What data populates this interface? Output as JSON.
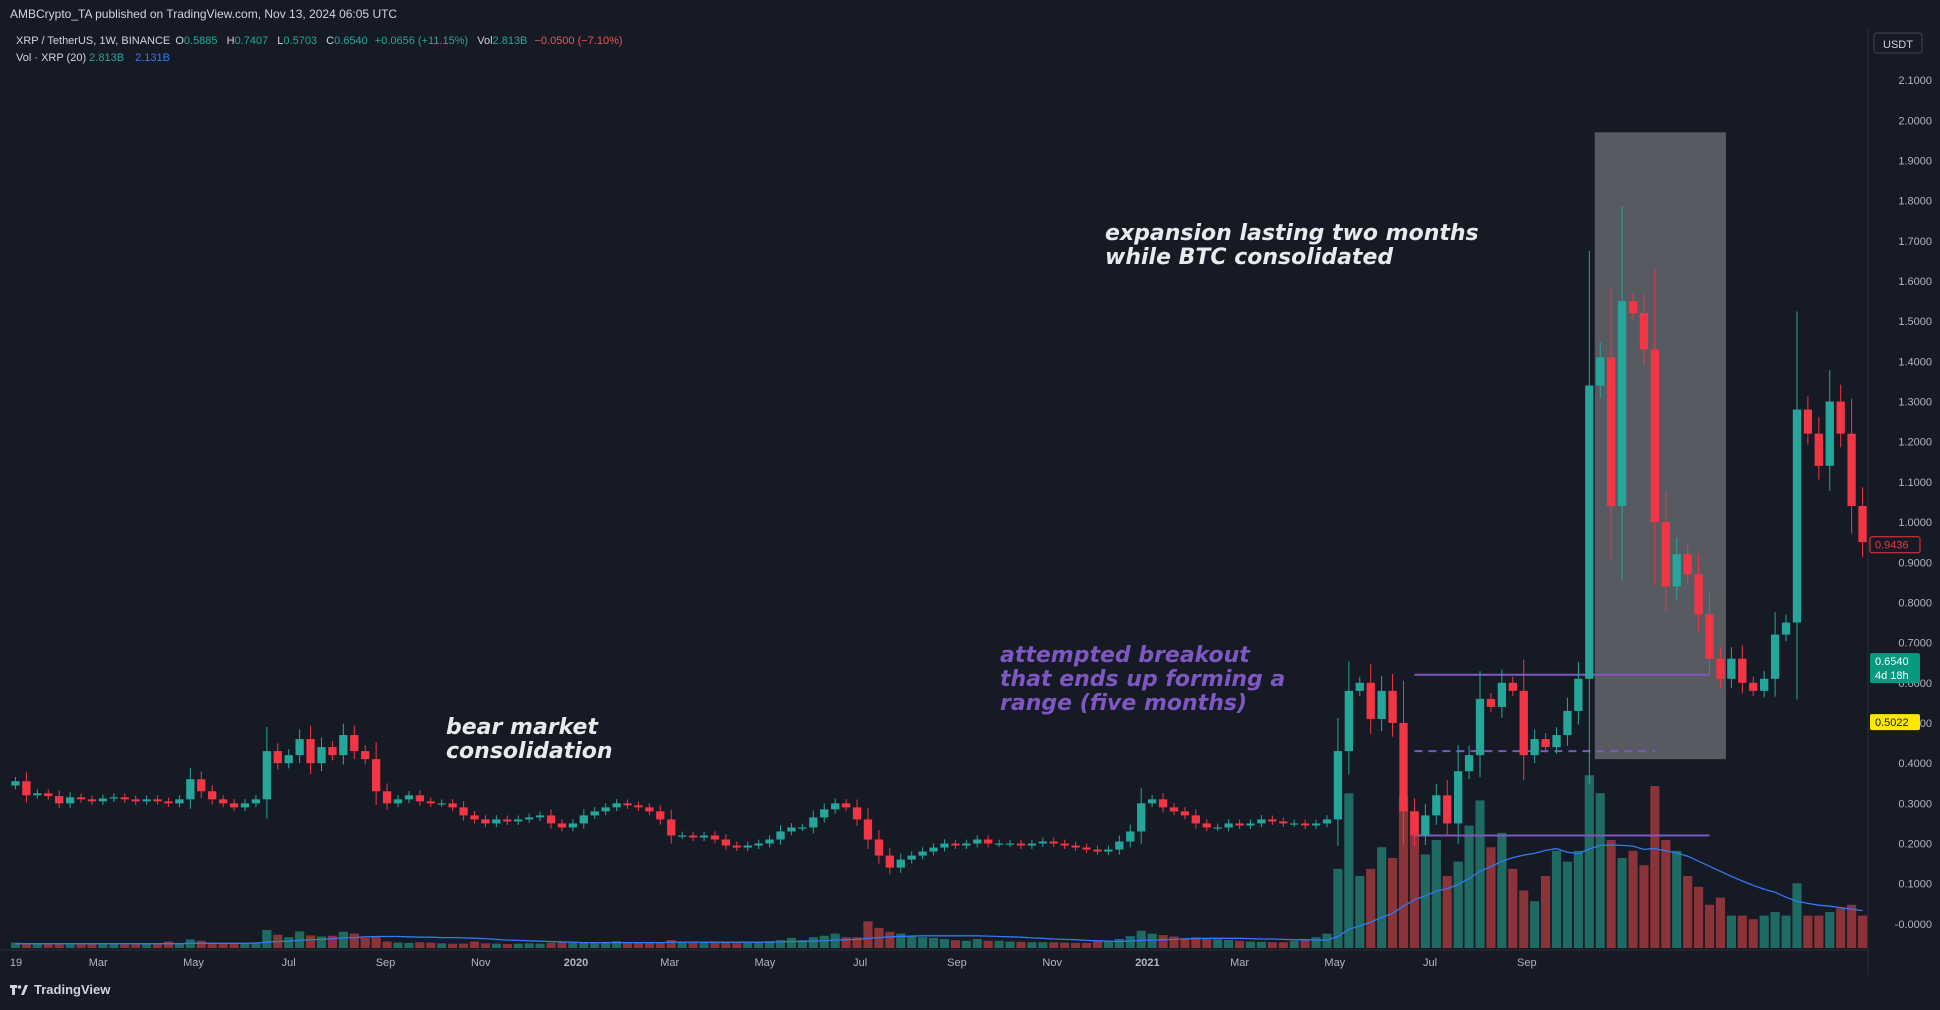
{
  "header": {
    "published": "AMBCrypto_TA published on TradingView.com, Nov 13, 2024 06:05 UTC"
  },
  "legend": {
    "symbol": "XRP / TetherUS, 1W, BINANCE",
    "open_label": "O",
    "open": "0.5885",
    "high_label": "H",
    "high": "0.7407",
    "low_label": "L",
    "low": "0.5703",
    "close_label": "C",
    "close": "0.6540",
    "change": "+0.0656 (+11.15%)",
    "vol_label": "Vol",
    "vol": "2.813B",
    "vol_change": "−0.0500 (−7.10%)",
    "vol_indicator": "Vol · XRP (20)",
    "vol_value": "2.813B",
    "vol_ma": "2.131B"
  },
  "currency_button": "USDT",
  "price_labels": {
    "marker_red": "0.9436",
    "marker_green": "0.6540",
    "marker_green_countdown": "4d 18h",
    "marker_yellow": "0.5022"
  },
  "annotations": {
    "expansion": [
      "expansion lasting two months",
      "while BTC consolidated"
    ],
    "breakout": [
      "attempted breakout",
      "that ends up forming a",
      "range (five months)"
    ],
    "bear": [
      "bear market",
      "consolidation"
    ]
  },
  "footer": {
    "brand": "TradingView",
    "logo_icon": "tradingview-logo-icon"
  },
  "colors": {
    "bg": "#161a25",
    "up": "#26a69a",
    "down": "#f23645",
    "vol_up": "#1f6b63",
    "vol_down": "#8a3338",
    "ma": "#3179f5",
    "annotation_white": "#e9e9ee",
    "annotation_purple": "#7e57c2",
    "box": "#8f8f94",
    "yellow": "#fde800"
  },
  "chart_data": {
    "type": "candlestick",
    "interval": "1W",
    "x_start": "2019-01-07",
    "x_end": "2021-09-27",
    "x_ticks": [
      "19",
      "Mar",
      "May",
      "Jul",
      "Sep",
      "Nov",
      "2020",
      "Mar",
      "May",
      "Jul",
      "Sep",
      "Nov",
      "2021",
      "Mar",
      "May",
      "Jul",
      "Sep"
    ],
    "y_ticks": [
      "2.1000",
      "2.0000",
      "1.9000",
      "1.8000",
      "1.7000",
      "1.6000",
      "1.5000",
      "1.4000",
      "1.3000",
      "1.2000",
      "1.1000",
      "1.0000",
      "0.9000",
      "0.8000",
      "0.7000",
      "0.6000",
      "0.5000",
      "0.4000",
      "0.3000",
      "0.2000",
      "0.1000",
      "-0.0000"
    ],
    "y_range": [
      -0.06,
      2.15
    ],
    "series": [
      {
        "name": "XRP / TetherUS",
        "close": [
          0.355,
          0.32,
          0.325,
          0.318,
          0.3,
          0.315,
          0.31,
          0.305,
          0.312,
          0.315,
          0.31,
          0.305,
          0.31,
          0.305,
          0.3,
          0.31,
          0.36,
          0.33,
          0.31,
          0.3,
          0.29,
          0.3,
          0.31,
          0.43,
          0.4,
          0.42,
          0.46,
          0.4,
          0.44,
          0.42,
          0.47,
          0.43,
          0.41,
          0.33,
          0.3,
          0.31,
          0.32,
          0.305,
          0.3,
          0.3,
          0.29,
          0.27,
          0.26,
          0.25,
          0.26,
          0.255,
          0.26,
          0.265,
          0.27,
          0.25,
          0.24,
          0.25,
          0.27,
          0.28,
          0.29,
          0.3,
          0.295,
          0.29,
          0.28,
          0.26,
          0.22,
          0.22,
          0.215,
          0.22,
          0.21,
          0.195,
          0.19,
          0.195,
          0.2,
          0.21,
          0.23,
          0.24,
          0.24,
          0.265,
          0.285,
          0.3,
          0.29,
          0.26,
          0.21,
          0.17,
          0.14,
          0.16,
          0.17,
          0.18,
          0.19,
          0.2,
          0.195,
          0.2,
          0.21,
          0.2,
          0.2,
          0.2,
          0.195,
          0.2,
          0.205,
          0.2,
          0.195,
          0.19,
          0.185,
          0.18,
          0.185,
          0.205,
          0.23,
          0.3,
          0.31,
          0.29,
          0.28,
          0.27,
          0.25,
          0.24,
          0.24,
          0.25,
          0.245,
          0.25,
          0.26,
          0.255,
          0.25,
          0.25,
          0.245,
          0.25,
          0.26,
          0.43,
          0.58,
          0.6,
          0.51,
          0.58,
          0.5,
          0.28,
          0.22,
          0.27,
          0.32,
          0.25,
          0.38,
          0.42,
          0.56,
          0.54,
          0.6,
          0.58,
          0.42,
          0.46,
          0.44,
          0.47,
          0.53,
          0.61,
          1.34,
          1.41,
          1.04,
          1.55,
          1.52,
          1.43,
          1.0,
          0.84,
          0.92,
          0.87,
          0.77,
          0.66,
          0.61,
          0.66,
          0.6,
          0.58,
          0.61,
          0.72,
          0.75,
          1.28,
          1.22,
          1.14,
          1.3,
          1.22,
          1.04,
          0.95
        ]
      },
      {
        "name": "Vol · XRP (20)",
        "note": "relative weekly volume (0-1 scale) with 20-period moving average",
        "volume": [
          0.015,
          0.013,
          0.012,
          0.011,
          0.012,
          0.01,
          0.011,
          0.012,
          0.013,
          0.011,
          0.01,
          0.011,
          0.012,
          0.011,
          0.018,
          0.013,
          0.024,
          0.02,
          0.015,
          0.012,
          0.013,
          0.012,
          0.014,
          0.05,
          0.037,
          0.03,
          0.046,
          0.035,
          0.032,
          0.034,
          0.045,
          0.04,
          0.028,
          0.032,
          0.018,
          0.015,
          0.014,
          0.016,
          0.015,
          0.013,
          0.012,
          0.012,
          0.018,
          0.013,
          0.012,
          0.011,
          0.012,
          0.013,
          0.012,
          0.015,
          0.016,
          0.014,
          0.015,
          0.016,
          0.017,
          0.019,
          0.015,
          0.016,
          0.017,
          0.016,
          0.022,
          0.018,
          0.014,
          0.015,
          0.016,
          0.017,
          0.015,
          0.016,
          0.018,
          0.019,
          0.022,
          0.028,
          0.022,
          0.03,
          0.034,
          0.04,
          0.03,
          0.03,
          0.074,
          0.056,
          0.045,
          0.04,
          0.035,
          0.03,
          0.028,
          0.025,
          0.022,
          0.02,
          0.025,
          0.02,
          0.02,
          0.018,
          0.017,
          0.016,
          0.016,
          0.016,
          0.015,
          0.014,
          0.014,
          0.018,
          0.02,
          0.025,
          0.033,
          0.048,
          0.04,
          0.036,
          0.032,
          0.028,
          0.03,
          0.025,
          0.024,
          0.022,
          0.02,
          0.018,
          0.017,
          0.016,
          0.016,
          0.02,
          0.025,
          0.03,
          0.04,
          0.22,
          0.43,
          0.2,
          0.22,
          0.28,
          0.25,
          0.42,
          0.38,
          0.26,
          0.3,
          0.2,
          0.24,
          0.34,
          0.41,
          0.28,
          0.32,
          0.22,
          0.16,
          0.13,
          0.2,
          0.27,
          0.24,
          0.27,
          0.48,
          0.43,
          0.3,
          0.25,
          0.27,
          0.23,
          0.45,
          0.3,
          0.27,
          0.2,
          0.17,
          0.12,
          0.14,
          0.09,
          0.09,
          0.08,
          0.09,
          0.1,
          0.09,
          0.18,
          0.09,
          0.09,
          0.1,
          0.11,
          0.12,
          0.09
        ],
        "ma": [
          0.012,
          0.012,
          0.012,
          0.012,
          0.012,
          0.012,
          0.012,
          0.012,
          0.012,
          0.012,
          0.012,
          0.012,
          0.012,
          0.012,
          0.012,
          0.012,
          0.013,
          0.013,
          0.013,
          0.013,
          0.013,
          0.013,
          0.014,
          0.016,
          0.018,
          0.019,
          0.021,
          0.023,
          0.024,
          0.026,
          0.028,
          0.029,
          0.031,
          0.032,
          0.032,
          0.032,
          0.031,
          0.03,
          0.03,
          0.029,
          0.029,
          0.028,
          0.027,
          0.026,
          0.024,
          0.022,
          0.021,
          0.02,
          0.019,
          0.018,
          0.017,
          0.016,
          0.015,
          0.015,
          0.015,
          0.015,
          0.015,
          0.015,
          0.015,
          0.015,
          0.016,
          0.016,
          0.016,
          0.016,
          0.016,
          0.016,
          0.016,
          0.016,
          0.016,
          0.016,
          0.017,
          0.018,
          0.018,
          0.019,
          0.02,
          0.022,
          0.023,
          0.024,
          0.027,
          0.029,
          0.031,
          0.032,
          0.033,
          0.034,
          0.034,
          0.034,
          0.034,
          0.034,
          0.034,
          0.033,
          0.032,
          0.031,
          0.03,
          0.028,
          0.027,
          0.025,
          0.024,
          0.023,
          0.021,
          0.02,
          0.019,
          0.018,
          0.019,
          0.021,
          0.022,
          0.023,
          0.024,
          0.025,
          0.026,
          0.027,
          0.027,
          0.027,
          0.027,
          0.026,
          0.025,
          0.025,
          0.024,
          0.023,
          0.023,
          0.022,
          0.022,
          0.032,
          0.052,
          0.061,
          0.072,
          0.085,
          0.096,
          0.116,
          0.134,
          0.145,
          0.158,
          0.165,
          0.176,
          0.193,
          0.213,
          0.226,
          0.241,
          0.251,
          0.258,
          0.263,
          0.271,
          0.276,
          0.266,
          0.262,
          0.275,
          0.285,
          0.286,
          0.285,
          0.283,
          0.274,
          0.276,
          0.27,
          0.264,
          0.255,
          0.241,
          0.227,
          0.213,
          0.199,
          0.186,
          0.174,
          0.163,
          0.155,
          0.141,
          0.13,
          0.124,
          0.119,
          0.116,
          0.112,
          0.108,
          0.104
        ]
      }
    ],
    "levels": [
      {
        "label": "range top",
        "value": 0.62
      },
      {
        "label": "range mid",
        "value": 0.43
      },
      {
        "label": "range bottom",
        "value": 0.22
      }
    ]
  }
}
